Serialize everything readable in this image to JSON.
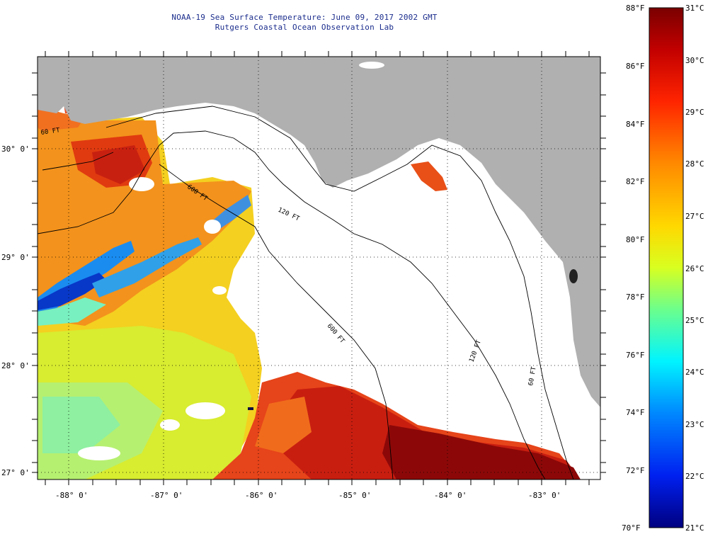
{
  "title": "NOAA-19 Sea Surface Temperature:  June 09, 2017 2002 GMT",
  "subtitle": "Rutgers Coastal Ocean Observation Lab",
  "map": {
    "lon_labels": [
      "-88° 0'",
      "-87° 0'",
      "-86° 0'",
      "-85° 0'",
      "-84° 0'",
      "-83° 0'"
    ],
    "lat_labels": [
      "30° 0'",
      "29° 0'",
      "28° 0'",
      "27° 0'"
    ],
    "contour_labels": [
      "60 FT",
      "600 FT",
      "120 FT",
      "600 FT",
      "120 FT",
      "60 FT"
    ],
    "colors": {
      "land": "#b0b0b0",
      "no_data": "#ffffff",
      "grid": "#000000",
      "contour": "#000000"
    }
  },
  "colorbar": {
    "f_labels": [
      "88°F",
      "86°F",
      "84°F",
      "82°F",
      "80°F",
      "78°F",
      "76°F",
      "74°F",
      "72°F",
      "70°F"
    ],
    "c_labels": [
      "31°C",
      "30°C",
      "29°C",
      "28°C",
      "27°C",
      "26°C",
      "25°C",
      "24°C",
      "23°C",
      "22°C",
      "21°C"
    ],
    "min_c": 21,
    "max_c": 31
  }
}
